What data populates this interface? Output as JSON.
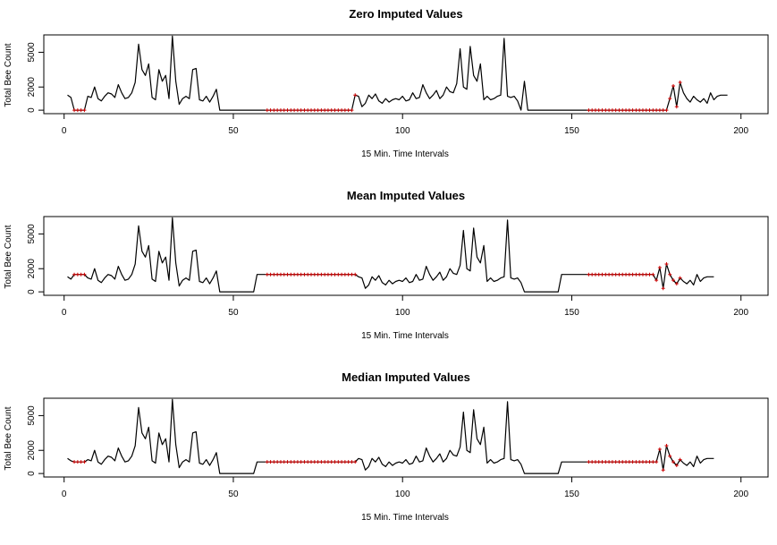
{
  "colors": {
    "line": "#000000",
    "imputed": "#cc0000",
    "box": "#000000",
    "background": "#ffffff"
  },
  "chart_data": [
    {
      "type": "line",
      "title": "Zero Imputed Values",
      "xlabel": "15 Min. Time Intervals",
      "ylabel": "Total Bee Count",
      "xlim": [
        -6,
        208
      ],
      "ylim": [
        -300,
        6500
      ],
      "xticks": [
        0,
        50,
        100,
        150,
        200
      ],
      "yticks": [
        0,
        2000,
        5000
      ],
      "xtick_labels": [
        "0",
        "50",
        "100",
        "150",
        "200"
      ],
      "ytick_labels": [
        "0",
        "2000",
        "5000"
      ],
      "imputed_value": 0,
      "series": [
        {
          "values": [
            1300,
            1100,
            0,
            0,
            0,
            0,
            1200,
            1100,
            2000,
            1000,
            800,
            1200,
            1500,
            1400,
            1100,
            2200,
            1500,
            1000,
            1100,
            1500,
            2400,
            5700,
            3500,
            3000,
            4000,
            1100,
            900,
            3500,
            2500,
            3000,
            1000,
            6400,
            2500,
            500,
            1000,
            1200,
            1000,
            3500,
            3600,
            900,
            800,
            1200,
            700,
            1200,
            1800,
            0,
            0,
            0,
            0,
            0,
            0,
            0,
            0,
            0,
            0,
            0,
            0,
            0,
            0,
            0,
            0,
            0,
            0,
            0,
            0,
            0,
            0,
            0,
            0,
            0,
            0,
            0,
            0,
            0,
            0,
            0,
            0,
            0,
            0,
            0,
            0,
            0,
            0,
            0,
            0,
            1300,
            1200,
            300,
            600,
            1300,
            1000,
            1400,
            800,
            600,
            1000,
            700,
            900,
            1000,
            900,
            1200,
            800,
            900,
            1500,
            1000,
            1100,
            2200,
            1500,
            1000,
            1300,
            1700,
            1000,
            1300,
            2000,
            1600,
            1500,
            2300,
            5300,
            2000,
            1800,
            5500,
            3000,
            2500,
            4000,
            900,
            1200,
            900,
            1000,
            1200,
            1300,
            6200,
            1200,
            1100,
            1200,
            800,
            0,
            2500,
            0,
            0,
            0,
            0,
            0,
            0,
            0,
            0,
            0,
            0,
            0,
            0,
            0,
            0,
            0,
            0,
            0,
            0,
            0,
            0,
            0,
            0,
            0,
            0,
            0,
            0,
            0,
            0,
            0,
            0,
            0,
            0,
            0,
            0,
            0,
            0,
            0,
            0,
            0,
            0,
            0,
            0,
            1000,
            2100,
            300,
            2400,
            1500,
            1000,
            700,
            1200,
            900,
            700,
            1000,
            600,
            1500,
            900,
            1200,
            1300,
            1300,
            1300
          ],
          "imputed_ranges": [
            [
              3,
              6
            ],
            [
              60,
              86
            ],
            [
              155,
              182
            ]
          ]
        }
      ]
    },
    {
      "type": "line",
      "title": "Mean Imputed Values",
      "xlabel": "15 Min. Time Intervals",
      "ylabel": "Total Bee Count",
      "xlim": [
        -6,
        208
      ],
      "ylim": [
        -300,
        6500
      ],
      "xticks": [
        0,
        50,
        100,
        150,
        200
      ],
      "yticks": [
        0,
        2000,
        5000
      ],
      "xtick_labels": [
        "0",
        "50",
        "100",
        "150",
        "200"
      ],
      "ytick_labels": [
        "0",
        "2000",
        "5000"
      ],
      "imputed_value": 1500,
      "series": [
        {
          "values": [
            1300,
            1100,
            1500,
            1500,
            1500,
            1500,
            1200,
            1100,
            2000,
            1000,
            800,
            1200,
            1500,
            1400,
            1100,
            2200,
            1500,
            1000,
            1100,
            1500,
            2400,
            5700,
            3500,
            3000,
            4000,
            1100,
            900,
            3500,
            2500,
            3000,
            1000,
            6400,
            2500,
            500,
            1000,
            1200,
            1000,
            3500,
            3600,
            900,
            800,
            1200,
            700,
            1200,
            1800,
            0,
            0,
            0,
            0,
            0,
            0,
            0,
            0,
            0,
            0,
            0,
            1500,
            1500,
            1500,
            1500,
            1500,
            1500,
            1500,
            1500,
            1500,
            1500,
            1500,
            1500,
            1500,
            1500,
            1500,
            1500,
            1500,
            1500,
            1500,
            1500,
            1500,
            1500,
            1500,
            1500,
            1500,
            1500,
            1500,
            1500,
            1500,
            1500,
            1300,
            1200,
            300,
            600,
            1300,
            1000,
            1400,
            800,
            600,
            1000,
            700,
            900,
            1000,
            900,
            1200,
            800,
            900,
            1500,
            1000,
            1100,
            2200,
            1500,
            1000,
            1300,
            1700,
            1000,
            1300,
            2000,
            1600,
            1500,
            2300,
            5300,
            2000,
            1800,
            5500,
            3000,
            2500,
            4000,
            900,
            1200,
            900,
            1000,
            1200,
            1300,
            6200,
            1200,
            1100,
            1200,
            800,
            0,
            0,
            0,
            0,
            0,
            0,
            0,
            0,
            0,
            0,
            0,
            1500,
            1500,
            1500,
            1500,
            1500,
            1500,
            1500,
            1500,
            1500,
            1500,
            1500,
            1500,
            1500,
            1500,
            1500,
            1500,
            1500,
            1500,
            1500,
            1500,
            1500,
            1500,
            1500,
            1500,
            1500,
            1500,
            1500,
            1500,
            1000,
            2100,
            300,
            2400,
            1500,
            1000,
            700,
            1200,
            900,
            700,
            1000,
            600,
            1500,
            900,
            1200,
            1300,
            1300,
            1300
          ],
          "imputed_ranges": [
            [
              3,
              6
            ],
            [
              60,
              86
            ],
            [
              155,
              182
            ]
          ]
        }
      ]
    },
    {
      "type": "line",
      "title": "Median Imputed Values",
      "xlabel": "15 Min. Time Intervals",
      "ylabel": "Total Bee Count",
      "xlim": [
        -6,
        208
      ],
      "ylim": [
        -300,
        6500
      ],
      "xticks": [
        0,
        50,
        100,
        150,
        200
      ],
      "yticks": [
        0,
        2000,
        5000
      ],
      "xtick_labels": [
        "0",
        "50",
        "100",
        "150",
        "200"
      ],
      "ytick_labels": [
        "0",
        "2000",
        "5000"
      ],
      "imputed_value": 1000,
      "series": [
        {
          "values": [
            1300,
            1100,
            1000,
            1000,
            1000,
            1000,
            1200,
            1100,
            2000,
            1000,
            800,
            1200,
            1500,
            1400,
            1100,
            2200,
            1500,
            1000,
            1100,
            1500,
            2400,
            5700,
            3500,
            3000,
            4000,
            1100,
            900,
            3500,
            2500,
            3000,
            1000,
            6400,
            2500,
            500,
            1000,
            1200,
            1000,
            3500,
            3600,
            900,
            800,
            1200,
            700,
            1200,
            1800,
            0,
            0,
            0,
            0,
            0,
            0,
            0,
            0,
            0,
            0,
            0,
            1000,
            1000,
            1000,
            1000,
            1000,
            1000,
            1000,
            1000,
            1000,
            1000,
            1000,
            1000,
            1000,
            1000,
            1000,
            1000,
            1000,
            1000,
            1000,
            1000,
            1000,
            1000,
            1000,
            1000,
            1000,
            1000,
            1000,
            1000,
            1000,
            1000,
            1300,
            1200,
            300,
            600,
            1300,
            1000,
            1400,
            800,
            600,
            1000,
            700,
            900,
            1000,
            900,
            1200,
            800,
            900,
            1500,
            1000,
            1100,
            2200,
            1500,
            1000,
            1300,
            1700,
            1000,
            1300,
            2000,
            1600,
            1500,
            2300,
            5300,
            2000,
            1800,
            5500,
            3000,
            2500,
            4000,
            900,
            1200,
            900,
            1000,
            1200,
            1300,
            6200,
            1200,
            1100,
            1200,
            800,
            0,
            0,
            0,
            0,
            0,
            0,
            0,
            0,
            0,
            0,
            0,
            1000,
            1000,
            1000,
            1000,
            1000,
            1000,
            1000,
            1000,
            1000,
            1000,
            1000,
            1000,
            1000,
            1000,
            1000,
            1000,
            1000,
            1000,
            1000,
            1000,
            1000,
            1000,
            1000,
            1000,
            1000,
            1000,
            1000,
            1000,
            1000,
            2100,
            300,
            2400,
            1500,
            1000,
            700,
            1200,
            900,
            700,
            1000,
            600,
            1500,
            900,
            1200,
            1300,
            1300,
            1300
          ],
          "imputed_ranges": [
            [
              3,
              6
            ],
            [
              60,
              86
            ],
            [
              155,
              182
            ]
          ]
        }
      ]
    }
  ]
}
